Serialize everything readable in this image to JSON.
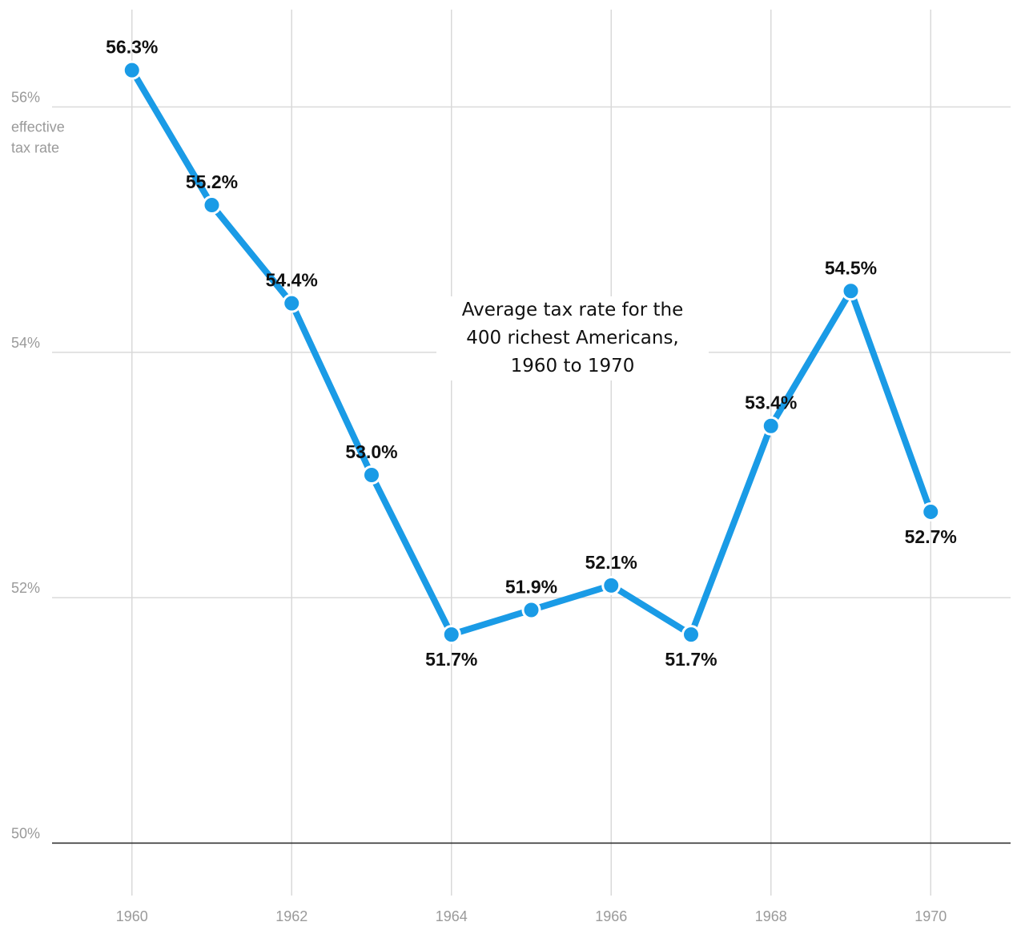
{
  "chart_data": {
    "type": "line",
    "title": "Average tax rate for the\n400 richest Americans,\n1960 to 1970",
    "ylabel": "effective\ntax rate",
    "xlabel": "",
    "x": [
      1960,
      1961,
      1962,
      1963,
      1964,
      1965,
      1966,
      1967,
      1968,
      1969,
      1970
    ],
    "series": [
      {
        "values": [
          56.3,
          55.2,
          54.4,
          53.0,
          51.7,
          51.9,
          52.1,
          51.7,
          53.4,
          54.5,
          52.7
        ],
        "labels": [
          "56.3%",
          "55.2%",
          "54.4%",
          "53.0%",
          "51.7%",
          "51.9%",
          "52.1%",
          "51.7%",
          "53.4%",
          "54.5%",
          "52.7%"
        ],
        "label_position": [
          "above",
          "above",
          "above",
          "above",
          "below",
          "above",
          "above",
          "below",
          "above",
          "above",
          "below"
        ]
      }
    ],
    "xlim": [
      1959,
      1971
    ],
    "ylim": [
      49.2,
      56.8
    ],
    "xticks": [
      1960,
      1962,
      1964,
      1966,
      1968,
      1970
    ],
    "yticks": [
      50,
      52,
      54,
      56
    ],
    "ytick_labels": [
      "50%",
      "52%",
      "54%",
      "56%"
    ],
    "grid": true,
    "line_color": "#1a9be6"
  }
}
